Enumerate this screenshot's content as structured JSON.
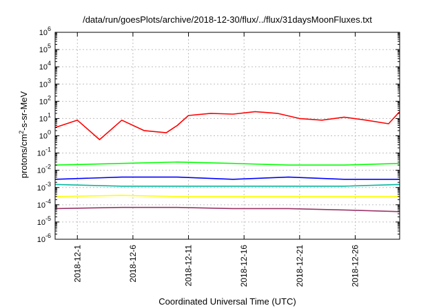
{
  "chart_data": {
    "type": "line",
    "title": "/data/run/goesPlots/archive/2018-12-30/flux/../flux/31daysMoonFluxes.txt",
    "xlabel": "Coordinated Universal Time (UTC)",
    "ylabel_parts": [
      "protons/cm",
      "2",
      "-s-sr-MeV"
    ],
    "yscale": "log",
    "ylim": [
      1e-06,
      1000000.0
    ],
    "xlim": [
      "2018-11-29",
      "2018-12-30"
    ],
    "grid": true,
    "legend": "none",
    "y_ticks": [
      {
        "base": "10",
        "exp": "-6"
      },
      {
        "base": "10",
        "exp": "-5"
      },
      {
        "base": "10",
        "exp": "-4"
      },
      {
        "base": "10",
        "exp": "-3"
      },
      {
        "base": "10",
        "exp": "-2"
      },
      {
        "base": "10",
        "exp": "-1"
      },
      {
        "base": "10",
        "exp": "0"
      },
      {
        "base": "10",
        "exp": "1"
      },
      {
        "base": "10",
        "exp": "2"
      },
      {
        "base": "10",
        "exp": "3"
      },
      {
        "base": "10",
        "exp": "4"
      },
      {
        "base": "10",
        "exp": "5"
      },
      {
        "base": "10",
        "exp": "6"
      }
    ],
    "x_ticks": [
      {
        "label": "2018-12-1",
        "date": "2018-12-01"
      },
      {
        "label": "2018-12-6",
        "date": "2018-12-06"
      },
      {
        "label": "2018-12-11",
        "date": "2018-12-11"
      },
      {
        "label": "2018-12-16",
        "date": "2018-12-16"
      },
      {
        "label": "2018-12-21",
        "date": "2018-12-21"
      },
      {
        "label": "2018-12-26",
        "date": "2018-12-26"
      }
    ],
    "series": [
      {
        "color": "#ff0000",
        "x": [
          "2018-11-29",
          "2018-12-01",
          "2018-12-03",
          "2018-12-05",
          "2018-12-07",
          "2018-12-09",
          "2018-12-10",
          "2018-12-11",
          "2018-12-13",
          "2018-12-15",
          "2018-12-17",
          "2018-12-19",
          "2018-12-21",
          "2018-12-23",
          "2018-12-25",
          "2018-12-27",
          "2018-12-29",
          "2018-12-30"
        ],
        "y": [
          3,
          8,
          0.6,
          8,
          2,
          1.5,
          4,
          15,
          20,
          18,
          25,
          20,
          10,
          8,
          12,
          8,
          5,
          25
        ]
      },
      {
        "color": "#00ff00",
        "x": [
          "2018-11-29",
          "2018-12-05",
          "2018-12-10",
          "2018-12-15",
          "2018-12-20",
          "2018-12-25",
          "2018-12-30"
        ],
        "y": [
          0.02,
          0.025,
          0.03,
          0.025,
          0.02,
          0.02,
          0.025
        ]
      },
      {
        "color": "#0000ff",
        "x": [
          "2018-11-29",
          "2018-12-05",
          "2018-12-10",
          "2018-12-15",
          "2018-12-20",
          "2018-12-25",
          "2018-12-30"
        ],
        "y": [
          0.003,
          0.004,
          0.004,
          0.003,
          0.004,
          0.003,
          0.003
        ]
      },
      {
        "color": "#00b8a0",
        "x": [
          "2018-11-29",
          "2018-12-05",
          "2018-12-10",
          "2018-12-15",
          "2018-12-20",
          "2018-12-25",
          "2018-12-30"
        ],
        "y": [
          0.0015,
          0.0012,
          0.0012,
          0.0012,
          0.0012,
          0.0012,
          0.0015
        ]
      },
      {
        "color": "#ffff00",
        "x": [
          "2018-11-29",
          "2018-12-05",
          "2018-12-10",
          "2018-12-15",
          "2018-12-20",
          "2018-12-25",
          "2018-12-30"
        ],
        "y": [
          0.0003,
          0.00035,
          0.0003,
          0.0003,
          0.0003,
          0.0003,
          0.0003
        ]
      },
      {
        "color": "#993366",
        "x": [
          "2018-11-29",
          "2018-12-05",
          "2018-12-10",
          "2018-12-15",
          "2018-12-20",
          "2018-12-25",
          "2018-12-30"
        ],
        "y": [
          6e-05,
          7e-05,
          7e-05,
          6e-05,
          6e-05,
          5e-05,
          4e-05
        ]
      }
    ]
  }
}
